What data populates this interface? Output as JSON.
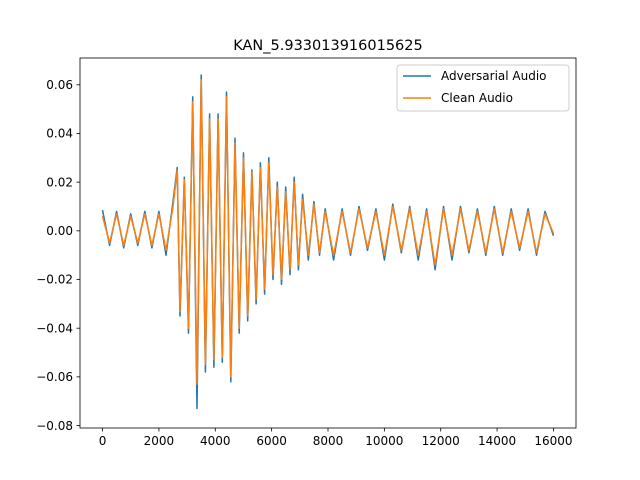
{
  "chart_data": {
    "type": "line",
    "title": "KAN_5.933013916015625",
    "xlabel": "",
    "ylabel": "",
    "xlim": [
      -800,
      16800
    ],
    "ylim": [
      -0.081,
      0.071
    ],
    "xticks": [
      0,
      2000,
      4000,
      6000,
      8000,
      10000,
      12000,
      14000,
      16000
    ],
    "xtick_labels": [
      "0",
      "2000",
      "4000",
      "6000",
      "8000",
      "10000",
      "12000",
      "14000",
      "16000"
    ],
    "yticks": [
      -0.08,
      -0.06,
      -0.04,
      -0.02,
      0.0,
      0.02,
      0.04,
      0.06
    ],
    "ytick_labels": [
      "−0.08",
      "−0.06",
      "−0.04",
      "−0.02",
      "0.00",
      "0.02",
      "0.04",
      "0.06"
    ],
    "grid": false,
    "legend_position": "upper-right",
    "series": [
      {
        "name": "Adversarial Audio",
        "color": "#1f77b4",
        "x": [
          0,
          250,
          500,
          750,
          1000,
          1250,
          1500,
          1750,
          2000,
          2250,
          2500,
          2650,
          2750,
          2900,
          3050,
          3200,
          3350,
          3500,
          3650,
          3800,
          3950,
          4100,
          4250,
          4400,
          4550,
          4700,
          4850,
          5000,
          5150,
          5300,
          5450,
          5600,
          5750,
          5900,
          6050,
          6200,
          6350,
          6500,
          6650,
          6800,
          6950,
          7100,
          7300,
          7500,
          7700,
          7900,
          8200,
          8500,
          8800,
          9100,
          9400,
          9700,
          10000,
          10300,
          10600,
          10900,
          11200,
          11500,
          11800,
          12100,
          12400,
          12700,
          13000,
          13300,
          13600,
          13900,
          14200,
          14500,
          14800,
          15100,
          15400,
          15700,
          16000
        ],
        "y": [
          0.0085,
          -0.006,
          0.008,
          -0.007,
          0.007,
          -0.006,
          0.008,
          -0.007,
          0.008,
          -0.01,
          0.012,
          0.026,
          -0.035,
          0.022,
          -0.042,
          0.055,
          -0.073,
          0.064,
          -0.058,
          0.048,
          -0.056,
          0.048,
          -0.054,
          0.057,
          -0.062,
          0.038,
          -0.042,
          0.032,
          -0.037,
          0.025,
          -0.03,
          0.028,
          -0.026,
          0.03,
          -0.02,
          0.02,
          -0.022,
          0.018,
          -0.018,
          0.022,
          -0.016,
          0.015,
          -0.012,
          0.012,
          -0.01,
          0.009,
          -0.012,
          0.009,
          -0.01,
          0.01,
          -0.008,
          0.009,
          -0.012,
          0.011,
          -0.009,
          0.01,
          -0.012,
          0.009,
          -0.016,
          0.01,
          -0.012,
          0.01,
          -0.009,
          0.009,
          -0.01,
          0.01,
          -0.01,
          0.009,
          -0.008,
          0.009,
          -0.01,
          0.008,
          -0.002
        ]
      },
      {
        "name": "Clean Audio",
        "color": "#ff7f0e",
        "x": [
          0,
          250,
          500,
          750,
          1000,
          1250,
          1500,
          1750,
          2000,
          2250,
          2500,
          2650,
          2750,
          2900,
          3050,
          3200,
          3350,
          3500,
          3650,
          3800,
          3950,
          4100,
          4250,
          4400,
          4550,
          4700,
          4850,
          5000,
          5150,
          5300,
          5450,
          5600,
          5750,
          5900,
          6050,
          6200,
          6350,
          6500,
          6650,
          6800,
          6950,
          7100,
          7300,
          7500,
          7700,
          7900,
          8200,
          8500,
          8800,
          9100,
          9400,
          9700,
          10000,
          10300,
          10600,
          10900,
          11200,
          11500,
          11800,
          12100,
          12400,
          12700,
          13000,
          13300,
          13600,
          13900,
          14200,
          14500,
          14800,
          15100,
          15400,
          15700,
          16000
        ],
        "y": [
          0.006,
          -0.005,
          0.007,
          -0.006,
          0.006,
          -0.005,
          0.007,
          -0.006,
          0.007,
          -0.008,
          0.01,
          0.025,
          -0.033,
          0.021,
          -0.04,
          0.053,
          -0.063,
          0.062,
          -0.055,
          0.046,
          -0.053,
          0.046,
          -0.052,
          0.055,
          -0.06,
          0.036,
          -0.04,
          0.03,
          -0.035,
          0.024,
          -0.028,
          0.026,
          -0.024,
          0.028,
          -0.018,
          0.018,
          -0.02,
          0.016,
          -0.016,
          0.02,
          -0.014,
          0.013,
          -0.01,
          0.011,
          -0.009,
          0.008,
          -0.01,
          0.008,
          -0.009,
          0.009,
          -0.007,
          0.008,
          -0.01,
          0.01,
          -0.008,
          0.009,
          -0.01,
          0.008,
          -0.014,
          0.009,
          -0.01,
          0.009,
          -0.008,
          0.008,
          -0.009,
          0.009,
          -0.009,
          0.008,
          -0.007,
          0.008,
          -0.009,
          0.007,
          -0.001
        ]
      }
    ]
  }
}
